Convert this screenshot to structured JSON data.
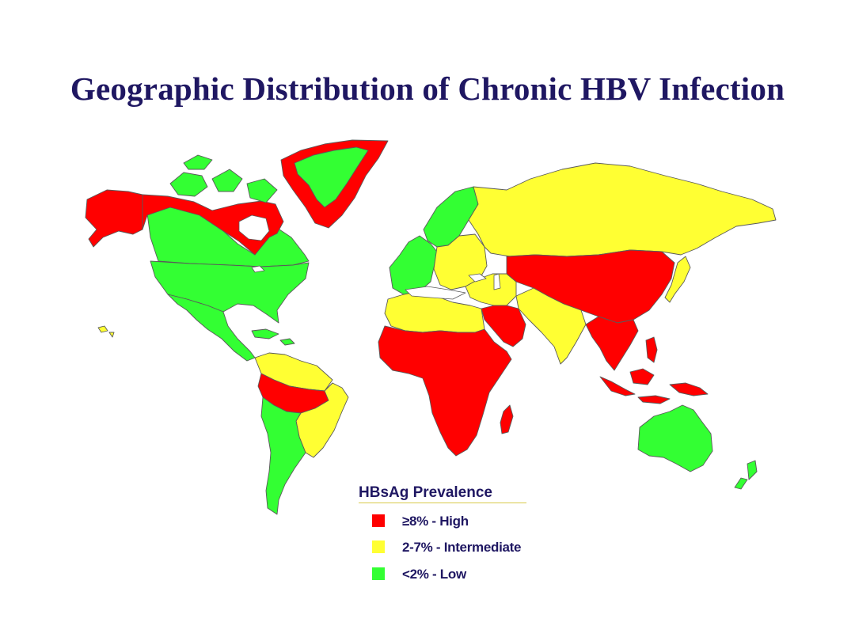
{
  "title": "Geographic Distribution of Chronic HBV Infection",
  "colors": {
    "high": "#ff0000",
    "intermediate": "#ffff33",
    "low": "#33ff33",
    "outline": "#5a5a5a",
    "title": "#1f1762"
  },
  "legend": {
    "title": "HBsAg Prevalence",
    "items": [
      {
        "label": "≥8% - High",
        "color": "#ff0000"
      },
      {
        "label": "2-7% - Intermediate",
        "color": "#ffff33"
      },
      {
        "label": " <2% - Low",
        "color": "#33ff33"
      }
    ]
  },
  "regions": [
    {
      "name": "alaska",
      "category": "high"
    },
    {
      "name": "northern-canada",
      "category": "high"
    },
    {
      "name": "canada",
      "category": "low"
    },
    {
      "name": "greenland-coast",
      "category": "high"
    },
    {
      "name": "greenland-interior",
      "category": "low"
    },
    {
      "name": "canadian-arctic-islands",
      "category": "low"
    },
    {
      "name": "usa",
      "category": "low"
    },
    {
      "name": "mexico-central-america",
      "category": "low"
    },
    {
      "name": "caribbean",
      "category": "low"
    },
    {
      "name": "northern-south-america",
      "category": "intermediate"
    },
    {
      "name": "amazon-basin",
      "category": "high"
    },
    {
      "name": "brazil-east",
      "category": "intermediate"
    },
    {
      "name": "southern-cone",
      "category": "low"
    },
    {
      "name": "scandinavia",
      "category": "low"
    },
    {
      "name": "western-europe",
      "category": "low"
    },
    {
      "name": "eastern-europe",
      "category": "intermediate"
    },
    {
      "name": "russia",
      "category": "intermediate"
    },
    {
      "name": "north-africa",
      "category": "intermediate"
    },
    {
      "name": "sub-saharan-africa",
      "category": "high"
    },
    {
      "name": "madagascar",
      "category": "high"
    },
    {
      "name": "arabian-peninsula",
      "category": "high"
    },
    {
      "name": "middle-east",
      "category": "intermediate"
    },
    {
      "name": "south-asia",
      "category": "intermediate"
    },
    {
      "name": "central-asia-china",
      "category": "high"
    },
    {
      "name": "southeast-asia",
      "category": "high"
    },
    {
      "name": "japan",
      "category": "intermediate"
    },
    {
      "name": "indonesia",
      "category": "high"
    },
    {
      "name": "philippines",
      "category": "high"
    },
    {
      "name": "papua-new-guinea",
      "category": "high"
    },
    {
      "name": "australia",
      "category": "low"
    },
    {
      "name": "new-zealand",
      "category": "low"
    },
    {
      "name": "hawaii",
      "category": "intermediate"
    }
  ]
}
